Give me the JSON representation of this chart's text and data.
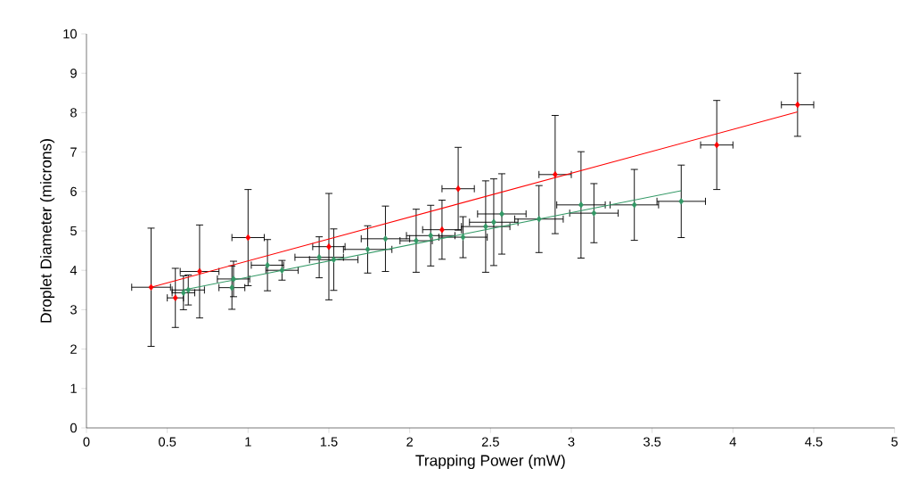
{
  "chart_data": {
    "type": "scatter",
    "xlabel": "Trapping Power (mW)",
    "ylabel": "Droplet Diameter (microns)",
    "xlim": [
      0,
      5
    ],
    "ylim": [
      0,
      10
    ],
    "xticks": [
      0,
      0.5,
      1,
      1.5,
      2,
      2.5,
      3,
      3.5,
      4,
      4.5,
      5
    ],
    "yticks": [
      0,
      1,
      2,
      3,
      4,
      5,
      6,
      7,
      8,
      9,
      10
    ],
    "marker": "diamond",
    "series": [
      {
        "color": "#ff0000",
        "x": [
          0.4,
          0.55,
          0.7,
          1.0,
          1.5,
          2.2,
          2.3,
          2.9,
          3.9,
          4.4
        ],
        "values": [
          3.57,
          3.3,
          3.97,
          4.83,
          4.6,
          5.03,
          6.07,
          6.43,
          7.18,
          8.2
        ],
        "errors": [
          1.5,
          0.75,
          1.18,
          1.22,
          1.35,
          0.75,
          1.05,
          1.5,
          1.13,
          0.8
        ],
        "xerrors": [
          0.12,
          0.05,
          0.12,
          0.1,
          0.1,
          0.12,
          0.1,
          0.1,
          0.1,
          0.1
        ]
      },
      {
        "color": "#339966",
        "x": [
          0.6,
          0.63,
          0.9,
          0.91,
          1.12,
          1.21,
          1.44,
          1.53,
          1.74,
          1.85,
          2.04,
          2.13,
          2.33,
          2.47,
          2.52,
          2.57,
          2.8,
          3.06,
          3.14,
          3.39,
          3.68
        ],
        "values": [
          3.43,
          3.5,
          3.56,
          3.78,
          4.13,
          4.0,
          4.33,
          4.27,
          4.53,
          4.8,
          4.75,
          4.88,
          4.84,
          5.11,
          5.22,
          5.43,
          5.3,
          5.66,
          5.45,
          5.66,
          5.75
        ],
        "errors": [
          0.43,
          0.38,
          0.55,
          0.45,
          0.65,
          0.25,
          0.52,
          0.78,
          0.6,
          0.83,
          0.8,
          0.77,
          0.52,
          1.16,
          1.1,
          1.02,
          0.85,
          1.35,
          0.75,
          0.9,
          0.92
        ],
        "xerrors": [
          0.07,
          0.1,
          0.08,
          0.1,
          0.1,
          0.1,
          0.15,
          0.15,
          0.15,
          0.15,
          0.1,
          0.15,
          0.15,
          0.15,
          0.15,
          0.15,
          0.15,
          0.15,
          0.15,
          0.15,
          0.15
        ]
      },
      {
        "type": "line",
        "marker": "none",
        "color": "#ff0000",
        "x": [
          0.4,
          4.4
        ],
        "values": [
          3.57,
          8.02
        ]
      },
      {
        "type": "line",
        "marker": "none",
        "color": "#339966",
        "x": [
          0.6,
          3.68
        ],
        "values": [
          3.5,
          6.02
        ]
      }
    ]
  }
}
